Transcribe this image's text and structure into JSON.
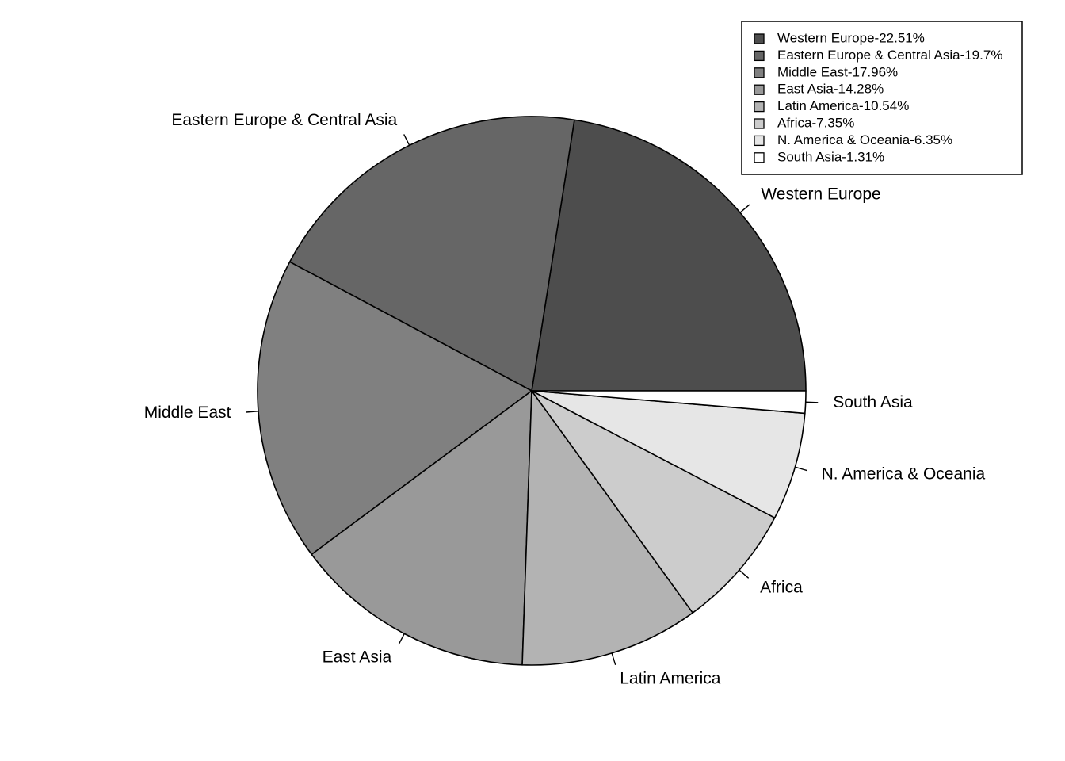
{
  "chart_data": {
    "type": "pie",
    "title": "",
    "start_angle_deg": 0,
    "direction": "counterclockwise",
    "slices": [
      {
        "label": "Western Europe",
        "legend": "Western Europe-22.51%",
        "value": 22.51,
        "color": "#4d4d4d"
      },
      {
        "label": "Eastern Europe & Central Asia",
        "legend": "Eastern Europe & Central Asia-19.7%",
        "value": 19.7,
        "color": "#666666"
      },
      {
        "label": "Middle East",
        "legend": "Middle East-17.96%",
        "value": 17.96,
        "color": "#808080"
      },
      {
        "label": "East Asia",
        "legend": "East Asia-14.28%",
        "value": 14.28,
        "color": "#999999"
      },
      {
        "label": "Latin America",
        "legend": "Latin America-10.54%",
        "value": 10.54,
        "color": "#b3b3b3"
      },
      {
        "label": "Africa",
        "legend": "Africa-7.35%",
        "value": 7.35,
        "color": "#cccccc"
      },
      {
        "label": "N. America & Oceania",
        "legend": "N. America & Oceania-6.35%",
        "value": 6.35,
        "color": "#e6e6e6"
      },
      {
        "label": "South Asia",
        "legend": "South Asia-1.31%",
        "value": 1.31,
        "color": "#ffffff"
      }
    ],
    "legend_position": "top-right"
  }
}
